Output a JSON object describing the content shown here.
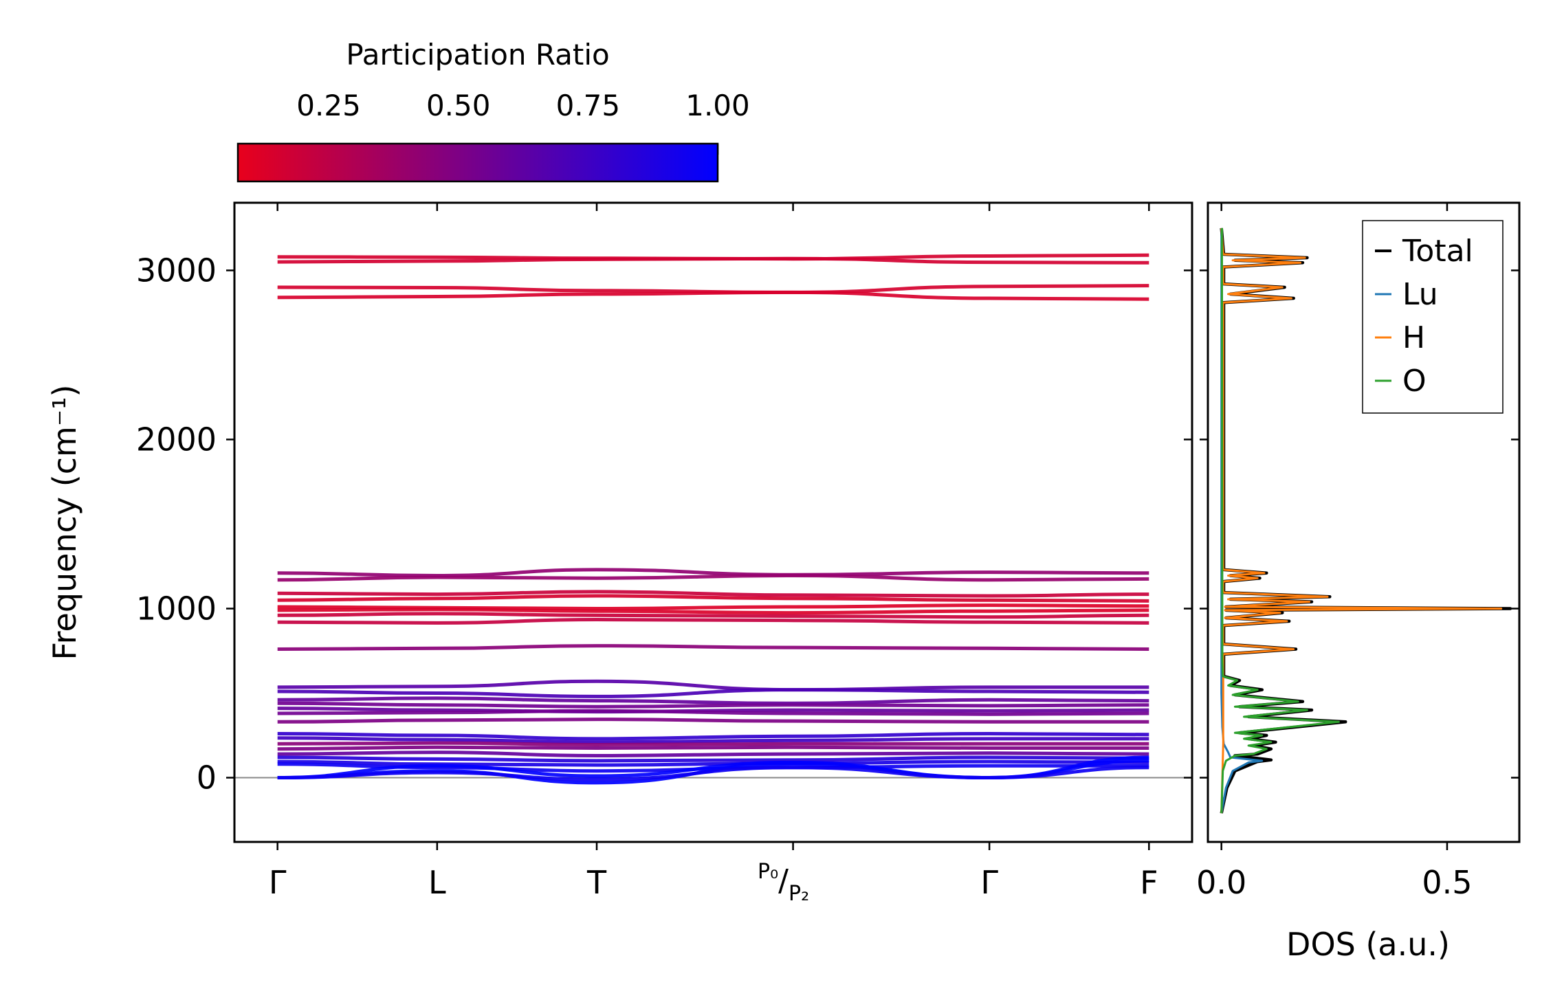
{
  "colorbar": {
    "title": "Participation Ratio",
    "ticks": [
      0.25,
      0.5,
      0.75,
      1.0
    ],
    "tick_labels": [
      "0.25",
      "0.50",
      "0.75",
      "1.00"
    ],
    "range": [
      0.075,
      1.0
    ],
    "color_low": "#e8001c",
    "color_high": "#0000ff"
  },
  "chart_data": [
    {
      "type": "line",
      "name": "phonon-band-structure",
      "ylabel": "Frequency (cm⁻¹)",
      "ylim": [
        -380,
        3400
      ],
      "yticks": [
        0,
        1000,
        2000,
        3000
      ],
      "ytick_labels": [
        "0",
        "1000",
        "2000",
        "3000"
      ],
      "xticks": [
        0,
        1,
        2,
        3.23,
        4.46,
        5.46
      ],
      "xtick_labels": [
        "Γ",
        "L",
        "T",
        "P₀/P₂",
        "Γ",
        "F"
      ],
      "xlim": [
        -0.27,
        5.73
      ],
      "zero_line": 0,
      "bands": [
        {
          "y": [
            3080,
            3078,
            3072,
            3068,
            3085,
            3090
          ],
          "pr": 0.15
        },
        {
          "y": [
            3050,
            3055,
            3065,
            3070,
            3048,
            3045
          ],
          "pr": 0.16
        },
        {
          "y": [
            2900,
            2898,
            2880,
            2870,
            2905,
            2910
          ],
          "pr": 0.15
        },
        {
          "y": [
            2840,
            2845,
            2860,
            2870,
            2835,
            2830
          ],
          "pr": 0.14
        },
        {
          "y": [
            1210,
            1195,
            1230,
            1200,
            1215,
            1210
          ],
          "pr": 0.42
        },
        {
          "y": [
            1170,
            1185,
            1180,
            1195,
            1170,
            1175
          ],
          "pr": 0.4
        },
        {
          "y": [
            1090,
            1085,
            1100,
            1080,
            1075,
            1085
          ],
          "pr": 0.2
        },
        {
          "y": [
            1050,
            1060,
            1075,
            1060,
            1050,
            1045
          ],
          "pr": 0.15
        },
        {
          "y": [
            1010,
            1005,
            1000,
            1010,
            1020,
            1015
          ],
          "pr": 0.12
        },
        {
          "y": [
            990,
            995,
            985,
            975,
            985,
            990
          ],
          "pr": 0.13
        },
        {
          "y": [
            960,
            970,
            960,
            955,
            950,
            960
          ],
          "pr": 0.2
        },
        {
          "y": [
            920,
            915,
            935,
            930,
            920,
            915
          ],
          "pr": 0.22
        },
        {
          "y": [
            760,
            765,
            780,
            770,
            765,
            760
          ],
          "pr": 0.45
        },
        {
          "y": [
            535,
            540,
            570,
            520,
            535,
            535
          ],
          "pr": 0.65
        },
        {
          "y": [
            510,
            500,
            480,
            520,
            510,
            505
          ],
          "pr": 0.7
        },
        {
          "y": [
            460,
            470,
            455,
            440,
            460,
            455
          ],
          "pr": 0.6
        },
        {
          "y": [
            440,
            430,
            420,
            430,
            425,
            430
          ],
          "pr": 0.55
        },
        {
          "y": [
            410,
            400,
            390,
            400,
            395,
            400
          ],
          "pr": 0.6
        },
        {
          "y": [
            380,
            385,
            395,
            380,
            375,
            380
          ],
          "pr": 0.55
        },
        {
          "y": [
            330,
            340,
            345,
            335,
            330,
            330
          ],
          "pr": 0.5
        },
        {
          "y": [
            260,
            250,
            230,
            245,
            260,
            255
          ],
          "pr": 0.8
        },
        {
          "y": [
            235,
            225,
            210,
            220,
            230,
            230
          ],
          "pr": 0.75
        },
        {
          "y": [
            200,
            205,
            195,
            200,
            200,
            200
          ],
          "pr": 0.45
        },
        {
          "y": [
            170,
            180,
            175,
            180,
            175,
            175
          ],
          "pr": 0.5
        },
        {
          "y": [
            140,
            150,
            130,
            140,
            145,
            140
          ],
          "pr": 0.6
        },
        {
          "y": [
            120,
            110,
            100,
            105,
            120,
            115
          ],
          "pr": 0.85
        },
        {
          "y": [
            95,
            80,
            75,
            85,
            95,
            90
          ],
          "pr": 0.9
        },
        {
          "y": [
            80,
            60,
            40,
            60,
            70,
            70
          ],
          "pr": 0.95
        },
        {
          "y": [
            0,
            70,
            10,
            90,
            0,
            120
          ],
          "pr": 1.0
        },
        {
          "y": [
            0,
            40,
            -30,
            80,
            0,
            100
          ],
          "pr": 1.0
        },
        {
          "y": [
            0,
            30,
            -10,
            60,
            0,
            60
          ],
          "pr": 0.95
        }
      ]
    },
    {
      "type": "line",
      "name": "density-of-states",
      "xlabel": "DOS (a.u.)",
      "xlim": [
        -0.03,
        0.66
      ],
      "xticks": [
        0.0,
        0.5
      ],
      "xtick_labels": [
        "0.0",
        "0.5"
      ],
      "ylim": [
        -380,
        3400
      ],
      "legend_position": "top-right",
      "series": [
        {
          "name": "Total",
          "color": "#000000",
          "points": [
            [
              0.0,
              -210
            ],
            [
              0.012,
              -60
            ],
            [
              0.03,
              40
            ],
            [
              0.08,
              95
            ],
            [
              0.11,
              105
            ],
            [
              0.03,
              130
            ],
            [
              0.08,
              140
            ],
            [
              0.11,
              170
            ],
            [
              0.07,
              190
            ],
            [
              0.12,
              210
            ],
            [
              0.06,
              230
            ],
            [
              0.1,
              250
            ],
            [
              0.04,
              265
            ],
            [
              0.275,
              330
            ],
            [
              0.06,
              360
            ],
            [
              0.2,
              400
            ],
            [
              0.04,
              420
            ],
            [
              0.18,
              450
            ],
            [
              0.03,
              490
            ],
            [
              0.09,
              520
            ],
            [
              0.02,
              545
            ],
            [
              0.04,
              575
            ],
            [
              0.005,
              600
            ],
            [
              0.005,
              730
            ],
            [
              0.165,
              760
            ],
            [
              0.005,
              790
            ],
            [
              0.005,
              900
            ],
            [
              0.15,
              925
            ],
            [
              0.01,
              945
            ],
            [
              0.135,
              975
            ],
            [
              0.01,
              990
            ],
            [
              0.64,
              1000
            ],
            [
              0.01,
              1010
            ],
            [
              0.2,
              1040
            ],
            [
              0.02,
              1055
            ],
            [
              0.24,
              1070
            ],
            [
              0.005,
              1095
            ],
            [
              0.005,
              1160
            ],
            [
              0.085,
              1180
            ],
            [
              0.02,
              1195
            ],
            [
              0.1,
              1210
            ],
            [
              0.005,
              1230
            ],
            [
              0.005,
              2810
            ],
            [
              0.16,
              2835
            ],
            [
              0.02,
              2860
            ],
            [
              0.14,
              2900
            ],
            [
              0.005,
              2920
            ],
            [
              0.005,
              3020
            ],
            [
              0.18,
              3045
            ],
            [
              0.03,
              3060
            ],
            [
              0.19,
              3075
            ],
            [
              0.005,
              3095
            ],
            [
              0.0,
              3250
            ]
          ]
        },
        {
          "name": "Lu",
          "color": "#1f77b4",
          "points": [
            [
              0.0,
              -210
            ],
            [
              0.01,
              -60
            ],
            [
              0.025,
              40
            ],
            [
              0.06,
              90
            ],
            [
              0.09,
              100
            ],
            [
              0.02,
              120
            ],
            [
              0.015,
              150
            ],
            [
              0.005,
              200
            ],
            [
              0.002,
              300
            ],
            [
              0.0,
              500
            ],
            [
              0.0,
              3250
            ]
          ]
        },
        {
          "name": "H",
          "color": "#ff7f0e",
          "points": [
            [
              0.0,
              -210
            ],
            [
              0.004,
              200
            ],
            [
              0.004,
              600
            ],
            [
              0.004,
              730
            ],
            [
              0.16,
              760
            ],
            [
              0.004,
              790
            ],
            [
              0.004,
              900
            ],
            [
              0.145,
              925
            ],
            [
              0.008,
              945
            ],
            [
              0.13,
              975
            ],
            [
              0.008,
              990
            ],
            [
              0.62,
              1000
            ],
            [
              0.008,
              1010
            ],
            [
              0.195,
              1040
            ],
            [
              0.015,
              1055
            ],
            [
              0.235,
              1070
            ],
            [
              0.004,
              1095
            ],
            [
              0.004,
              1160
            ],
            [
              0.08,
              1180
            ],
            [
              0.015,
              1195
            ],
            [
              0.095,
              1210
            ],
            [
              0.004,
              1230
            ],
            [
              0.004,
              2810
            ],
            [
              0.155,
              2835
            ],
            [
              0.015,
              2860
            ],
            [
              0.135,
              2900
            ],
            [
              0.004,
              2920
            ],
            [
              0.004,
              3020
            ],
            [
              0.175,
              3045
            ],
            [
              0.025,
              3060
            ],
            [
              0.185,
              3075
            ],
            [
              0.004,
              3095
            ],
            [
              0.0,
              3250
            ]
          ]
        },
        {
          "name": "O",
          "color": "#2ca02c",
          "points": [
            [
              0.0,
              -210
            ],
            [
              0.003,
              40
            ],
            [
              0.01,
              100
            ],
            [
              0.03,
              130
            ],
            [
              0.07,
              140
            ],
            [
              0.1,
              170
            ],
            [
              0.06,
              190
            ],
            [
              0.11,
              210
            ],
            [
              0.05,
              230
            ],
            [
              0.09,
              250
            ],
            [
              0.03,
              265
            ],
            [
              0.26,
              330
            ],
            [
              0.05,
              360
            ],
            [
              0.19,
              400
            ],
            [
              0.03,
              420
            ],
            [
              0.17,
              450
            ],
            [
              0.025,
              490
            ],
            [
              0.08,
              520
            ],
            [
              0.015,
              545
            ],
            [
              0.035,
              575
            ],
            [
              0.003,
              600
            ],
            [
              0.002,
              700
            ],
            [
              0.001,
              3250
            ]
          ]
        }
      ]
    }
  ]
}
